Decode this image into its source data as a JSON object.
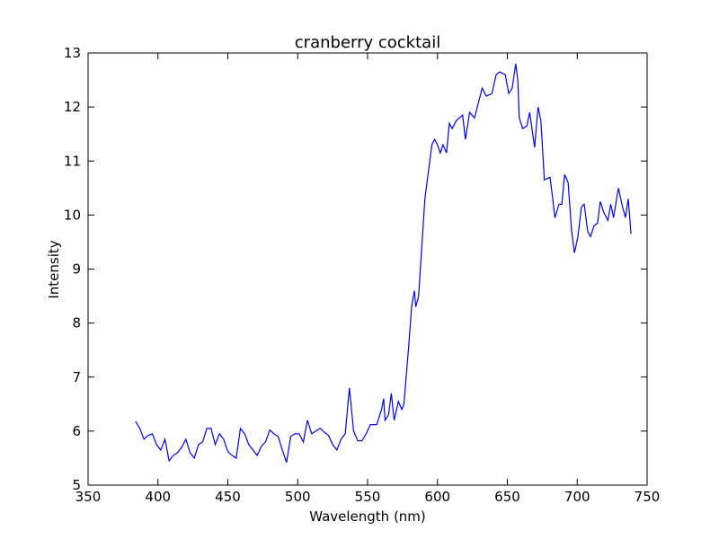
{
  "chart_data": {
    "type": "line",
    "title": "cranberry cocktail",
    "xlabel": "Wavelength (nm)",
    "ylabel": "Intensity",
    "x": [
      384,
      387,
      390,
      393,
      396,
      399,
      402,
      405,
      408,
      411,
      414,
      417,
      420,
      423,
      426,
      429,
      432,
      435,
      438,
      441,
      444,
      447,
      450,
      453,
      456,
      459,
      462,
      465,
      468,
      471,
      474,
      477,
      480,
      483,
      486,
      489,
      492,
      495,
      498,
      501,
      504,
      507,
      510,
      513,
      516,
      519,
      522,
      525,
      528,
      531,
      534,
      537,
      540,
      543,
      546,
      549,
      552,
      556.5,
      560,
      561.5,
      562.5,
      565,
      567,
      569,
      572,
      574.5,
      576,
      579.5,
      581.5,
      583.5,
      584.5,
      586.5,
      589,
      591,
      593.5,
      596,
      598,
      600,
      602,
      604,
      606.5,
      608.5,
      610.5,
      613.5,
      618,
      620,
      623,
      626.5,
      629.5,
      632,
      635,
      639,
      642,
      644.5,
      648.5,
      651,
      653.5,
      656,
      657.5,
      658.5,
      661,
      664,
      666,
      669.5,
      672,
      674,
      676.5,
      680.5,
      682.5,
      684,
      687,
      689,
      691,
      693.5,
      696,
      698,
      700.5,
      703,
      705,
      707.5,
      709.5,
      712,
      714.5,
      716.5,
      719,
      722,
      724,
      726,
      729.5,
      732,
      734.5,
      736.5,
      738.5
    ],
    "series": [
      {
        "name": "cranberry cocktail",
        "color": "#0000ff",
        "values": [
          6.18,
          6.05,
          5.85,
          5.92,
          5.95,
          5.75,
          5.65,
          5.85,
          5.45,
          5.55,
          5.6,
          5.7,
          5.85,
          5.6,
          5.5,
          5.75,
          5.8,
          6.05,
          6.05,
          5.75,
          5.95,
          5.85,
          5.62,
          5.55,
          5.5,
          6.05,
          5.95,
          5.75,
          5.65,
          5.55,
          5.72,
          5.8,
          6.02,
          5.95,
          5.9,
          5.65,
          5.42,
          5.9,
          5.95,
          5.95,
          5.8,
          6.2,
          5.95,
          6.0,
          6.05,
          5.98,
          5.92,
          5.75,
          5.65,
          5.85,
          5.95,
          6.8,
          6.0,
          5.82,
          5.82,
          5.95,
          6.12,
          6.12,
          6.4,
          6.6,
          6.2,
          6.3,
          6.7,
          6.2,
          6.55,
          6.4,
          6.5,
          7.6,
          8.3,
          8.6,
          8.3,
          8.5,
          9.5,
          10.3,
          10.8,
          11.3,
          11.4,
          11.3,
          11.15,
          11.3,
          11.15,
          11.7,
          11.6,
          11.75,
          11.85,
          11.4,
          11.9,
          11.8,
          12.1,
          12.35,
          12.2,
          12.25,
          12.6,
          12.65,
          12.6,
          12.25,
          12.35,
          12.8,
          12.5,
          11.8,
          11.6,
          11.65,
          11.9,
          11.25,
          12.0,
          11.75,
          10.65,
          10.7,
          10.3,
          9.95,
          10.2,
          10.2,
          10.75,
          10.6,
          9.7,
          9.3,
          9.6,
          10.15,
          10.2,
          9.7,
          9.6,
          9.8,
          9.85,
          10.25,
          10.05,
          9.9,
          10.2,
          9.95,
          10.5,
          10.2,
          9.95,
          10.3,
          9.65
        ]
      }
    ],
    "xlim": [
      350,
      750
    ],
    "xticks": [
      350,
      400,
      450,
      500,
      550,
      600,
      650,
      700,
      750
    ],
    "ylim": [
      5,
      13
    ],
    "yticks": [
      5,
      6,
      7,
      8,
      9,
      10,
      11,
      12,
      13
    ]
  }
}
